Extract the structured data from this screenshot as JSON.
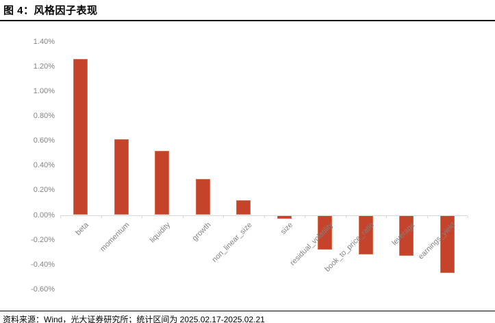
{
  "title": "图 4：风格因子表现",
  "footer": {
    "source": "资料来源：Wind，光大证券研究所；统计区间为 2025.02.17-2025.02.21"
  },
  "chart_data": {
    "type": "bar",
    "title": "风格因子表现",
    "categories": [
      "beta",
      "momentum",
      "liquidity",
      "growth",
      "non_linear_size",
      "size",
      "residual_volatility",
      "book_to_price_ratio",
      "leverage",
      "earnings_yield"
    ],
    "values": [
      1.26,
      0.61,
      0.52,
      0.29,
      0.12,
      -0.03,
      -0.28,
      -0.32,
      -0.33,
      -0.47
    ],
    "unit": "%",
    "xlabel": "",
    "ylabel": "",
    "ylim": [
      -0.6,
      1.4
    ],
    "ytick_step": 0.2,
    "ytick_labels": [
      "1.40%",
      "1.20%",
      "1.00%",
      "0.80%",
      "0.60%",
      "0.40%",
      "0.20%",
      "0.00%",
      "-0.20%",
      "-0.40%",
      "-0.60%"
    ],
    "grid": false,
    "legend": null,
    "colors": {
      "bar": "#C5432B",
      "bar_edge": "#D5714F",
      "axis_line": "#D9D9D9",
      "tick_label": "#828282"
    }
  }
}
